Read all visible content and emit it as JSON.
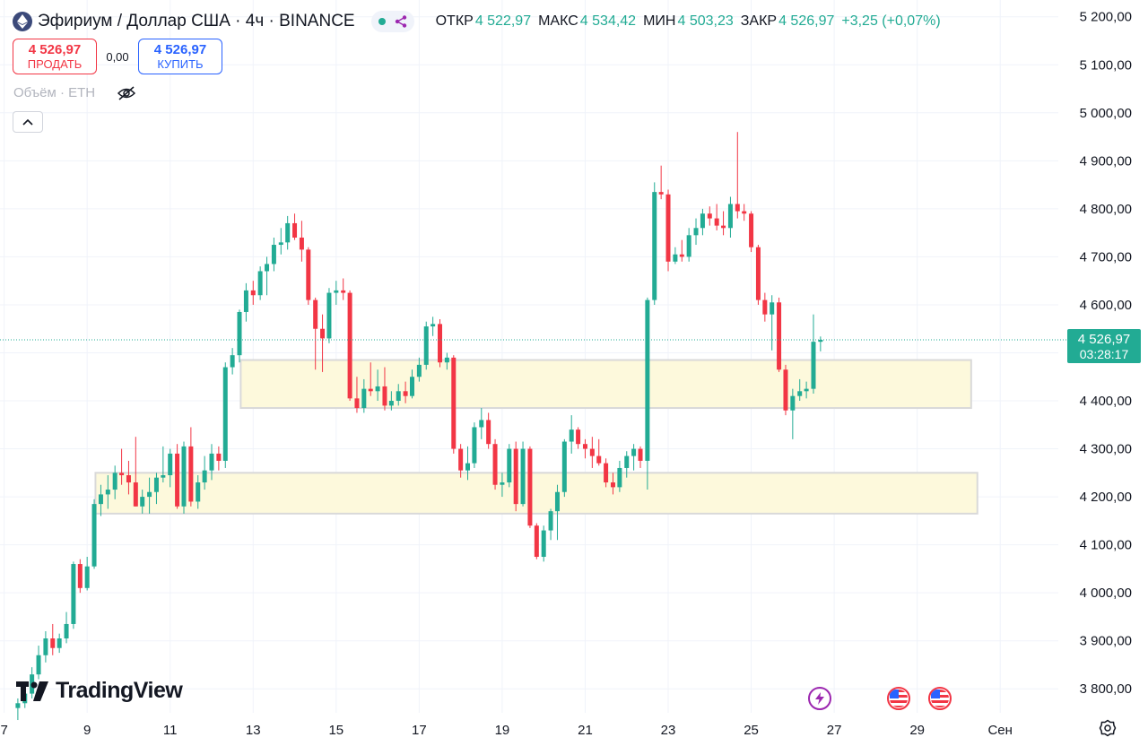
{
  "header": {
    "symbol_title": "Эфириум / Доллар США · 4ч · BINANCE",
    "ohlc": {
      "open_label": "ОТКР",
      "open": "4 522,97",
      "high_label": "МАКС",
      "high": "4 534,42",
      "low_label": "МИН",
      "low": "4 503,23",
      "close_label": "ЗАКР",
      "close": "4 526,97",
      "change": "+3,25 (+0,07%)"
    }
  },
  "trade": {
    "sell_price": "4 526,97",
    "sell_label": "ПРОДАТЬ",
    "spread": "0,00",
    "buy_price": "4 526,97",
    "buy_label": "КУПИТЬ"
  },
  "volume": {
    "label": "Объём · ETH"
  },
  "price_badge": {
    "price": "4 526,97",
    "countdown": "03:28:17"
  },
  "logo": {
    "text": "TradingView"
  },
  "colors": {
    "up": "#22ab94",
    "down": "#f23645",
    "zone_fill": "#fdf9dc",
    "zone_stroke": "#d9d9d9",
    "grid": "#f0f3fa",
    "text": "#131722"
  },
  "icons": {
    "symbol": "ethereum-icon",
    "status": "market-open-dot-icon",
    "alert": "alert-share-icon",
    "eye": "eye-off-icon",
    "collapse": "chevron-up-icon",
    "bolt": "lightning-event-icon",
    "flag": "us-flag-event-icon",
    "settings": "gear-icon"
  },
  "chart_data": {
    "type": "candlestick",
    "interval": "4h",
    "y_ticks": [
      3800,
      3900,
      4000,
      4100,
      4200,
      4300,
      4400,
      4500,
      4600,
      4700,
      4800,
      4900,
      5000,
      5100,
      5200
    ],
    "y_tick_labels": [
      "3 800,00",
      "3 900,00",
      "4 000,00",
      "4 100,00",
      "4 200,00",
      "4 300,00",
      "4 400,00",
      "4 500,00",
      "4 600,00",
      "4 700,00",
      "4 800,00",
      "4 900,00",
      "5 000,00",
      "5 100,00",
      "5 200,00"
    ],
    "x_ticks": [
      7,
      9,
      11,
      13,
      15,
      17,
      19,
      21,
      23,
      25,
      27,
      29,
      31
    ],
    "x_tick_labels": [
      "7",
      "9",
      "11",
      "13",
      "15",
      "17",
      "19",
      "21",
      "23",
      "25",
      "27",
      "29",
      "Сен"
    ],
    "ylim": [
      3750,
      5235
    ],
    "xlim": [
      6.9,
      32.4
    ],
    "last_price": 4526.97,
    "zones": [
      {
        "x_start": 12.7,
        "x_end": 30.3,
        "y_low": 4385,
        "y_high": 4485
      },
      {
        "x_start": 9.2,
        "x_end": 30.45,
        "y_low": 4165,
        "y_high": 4250
      }
    ],
    "events": [
      {
        "x": 26.65,
        "type": "lightning"
      },
      {
        "x": 28.55,
        "type": "flag"
      },
      {
        "x": 29.55,
        "type": "flag"
      }
    ],
    "candles": [
      {
        "t": 7.33,
        "o": 3760,
        "h": 3780,
        "l": 3735,
        "c": 3770
      },
      {
        "t": 7.5,
        "o": 3770,
        "h": 3800,
        "l": 3760,
        "c": 3790
      },
      {
        "t": 7.67,
        "o": 3790,
        "h": 3845,
        "l": 3780,
        "c": 3830
      },
      {
        "t": 7.83,
        "o": 3830,
        "h": 3890,
        "l": 3820,
        "c": 3870
      },
      {
        "t": 8.0,
        "o": 3870,
        "h": 3920,
        "l": 3855,
        "c": 3905
      },
      {
        "t": 8.17,
        "o": 3905,
        "h": 3935,
        "l": 3870,
        "c": 3885
      },
      {
        "t": 8.33,
        "o": 3885,
        "h": 3915,
        "l": 3875,
        "c": 3905
      },
      {
        "t": 8.5,
        "o": 3905,
        "h": 3960,
        "l": 3895,
        "c": 3935
      },
      {
        "t": 8.67,
        "o": 3935,
        "h": 4065,
        "l": 3925,
        "c": 4060
      },
      {
        "t": 8.83,
        "o": 4060,
        "h": 4070,
        "l": 4000,
        "c": 4010
      },
      {
        "t": 9.0,
        "o": 4010,
        "h": 4075,
        "l": 4005,
        "c": 4055
      },
      {
        "t": 9.17,
        "o": 4055,
        "h": 4195,
        "l": 4050,
        "c": 4185
      },
      {
        "t": 9.33,
        "o": 4185,
        "h": 4225,
        "l": 4160,
        "c": 4205
      },
      {
        "t": 9.5,
        "o": 4205,
        "h": 4245,
        "l": 4175,
        "c": 4215
      },
      {
        "t": 9.67,
        "o": 4215,
        "h": 4265,
        "l": 4195,
        "c": 4250
      },
      {
        "t": 9.83,
        "o": 4250,
        "h": 4300,
        "l": 4225,
        "c": 4245
      },
      {
        "t": 10.0,
        "o": 4245,
        "h": 4275,
        "l": 4205,
        "c": 4230
      },
      {
        "t": 10.17,
        "o": 4230,
        "h": 4325,
        "l": 4180,
        "c": 4180
      },
      {
        "t": 10.33,
        "o": 4180,
        "h": 4215,
        "l": 4165,
        "c": 4200
      },
      {
        "t": 10.5,
        "o": 4200,
        "h": 4240,
        "l": 4165,
        "c": 4210
      },
      {
        "t": 10.67,
        "o": 4210,
        "h": 4250,
        "l": 4185,
        "c": 4240
      },
      {
        "t": 10.83,
        "o": 4240,
        "h": 4305,
        "l": 4230,
        "c": 4245
      },
      {
        "t": 11.0,
        "o": 4245,
        "h": 4300,
        "l": 4220,
        "c": 4290
      },
      {
        "t": 11.17,
        "o": 4290,
        "h": 4310,
        "l": 4175,
        "c": 4180
      },
      {
        "t": 11.33,
        "o": 4180,
        "h": 4315,
        "l": 4165,
        "c": 4305
      },
      {
        "t": 11.5,
        "o": 4305,
        "h": 4345,
        "l": 4180,
        "c": 4190
      },
      {
        "t": 11.67,
        "o": 4190,
        "h": 4245,
        "l": 4175,
        "c": 4230
      },
      {
        "t": 11.83,
        "o": 4230,
        "h": 4285,
        "l": 4215,
        "c": 4255
      },
      {
        "t": 12.0,
        "o": 4255,
        "h": 4310,
        "l": 4235,
        "c": 4290
      },
      {
        "t": 12.17,
        "o": 4290,
        "h": 4305,
        "l": 4255,
        "c": 4275
      },
      {
        "t": 12.33,
        "o": 4275,
        "h": 4480,
        "l": 4260,
        "c": 4470
      },
      {
        "t": 12.5,
        "o": 4470,
        "h": 4510,
        "l": 4455,
        "c": 4495
      },
      {
        "t": 12.67,
        "o": 4495,
        "h": 4590,
        "l": 4480,
        "c": 4585
      },
      {
        "t": 12.83,
        "o": 4585,
        "h": 4645,
        "l": 4565,
        "c": 4630
      },
      {
        "t": 13.0,
        "o": 4630,
        "h": 4650,
        "l": 4600,
        "c": 4620
      },
      {
        "t": 13.17,
        "o": 4620,
        "h": 4680,
        "l": 4610,
        "c": 4670
      },
      {
        "t": 13.33,
        "o": 4670,
        "h": 4700,
        "l": 4620,
        "c": 4685
      },
      {
        "t": 13.5,
        "o": 4685,
        "h": 4740,
        "l": 4670,
        "c": 4725
      },
      {
        "t": 13.67,
        "o": 4725,
        "h": 4760,
        "l": 4705,
        "c": 4730
      },
      {
        "t": 13.83,
        "o": 4730,
        "h": 4785,
        "l": 4715,
        "c": 4770
      },
      {
        "t": 14.0,
        "o": 4770,
        "h": 4790,
        "l": 4735,
        "c": 4740
      },
      {
        "t": 14.17,
        "o": 4740,
        "h": 4775,
        "l": 4690,
        "c": 4715
      },
      {
        "t": 14.33,
        "o": 4715,
        "h": 4720,
        "l": 4600,
        "c": 4610
      },
      {
        "t": 14.5,
        "o": 4610,
        "h": 4615,
        "l": 4465,
        "c": 4550
      },
      {
        "t": 14.67,
        "o": 4550,
        "h": 4580,
        "l": 4460,
        "c": 4530
      },
      {
        "t": 14.83,
        "o": 4530,
        "h": 4635,
        "l": 4520,
        "c": 4625
      },
      {
        "t": 15.0,
        "o": 4625,
        "h": 4650,
        "l": 4600,
        "c": 4630
      },
      {
        "t": 15.17,
        "o": 4630,
        "h": 4655,
        "l": 4610,
        "c": 4625
      },
      {
        "t": 15.33,
        "o": 4625,
        "h": 4630,
        "l": 4400,
        "c": 4405
      },
      {
        "t": 15.5,
        "o": 4405,
        "h": 4450,
        "l": 4375,
        "c": 4385
      },
      {
        "t": 15.67,
        "o": 4385,
        "h": 4445,
        "l": 4375,
        "c": 4425
      },
      {
        "t": 15.83,
        "o": 4425,
        "h": 4480,
        "l": 4410,
        "c": 4420
      },
      {
        "t": 16.0,
        "o": 4420,
        "h": 4465,
        "l": 4400,
        "c": 4430
      },
      {
        "t": 16.17,
        "o": 4430,
        "h": 4470,
        "l": 4380,
        "c": 4390
      },
      {
        "t": 16.33,
        "o": 4390,
        "h": 4420,
        "l": 4380,
        "c": 4400
      },
      {
        "t": 16.5,
        "o": 4400,
        "h": 4435,
        "l": 4390,
        "c": 4420
      },
      {
        "t": 16.67,
        "o": 4420,
        "h": 4440,
        "l": 4395,
        "c": 4410
      },
      {
        "t": 16.83,
        "o": 4410,
        "h": 4465,
        "l": 4405,
        "c": 4450
      },
      {
        "t": 17.0,
        "o": 4450,
        "h": 4490,
        "l": 4440,
        "c": 4475
      },
      {
        "t": 17.17,
        "o": 4475,
        "h": 4565,
        "l": 4465,
        "c": 4555
      },
      {
        "t": 17.33,
        "o": 4555,
        "h": 4575,
        "l": 4535,
        "c": 4560
      },
      {
        "t": 17.5,
        "o": 4560,
        "h": 4570,
        "l": 4470,
        "c": 4480
      },
      {
        "t": 17.67,
        "o": 4480,
        "h": 4500,
        "l": 4465,
        "c": 4490
      },
      {
        "t": 17.83,
        "o": 4490,
        "h": 4495,
        "l": 4290,
        "c": 4300
      },
      {
        "t": 18.0,
        "o": 4300,
        "h": 4310,
        "l": 4240,
        "c": 4255
      },
      {
        "t": 18.17,
        "o": 4255,
        "h": 4305,
        "l": 4235,
        "c": 4270
      },
      {
        "t": 18.33,
        "o": 4270,
        "h": 4355,
        "l": 4260,
        "c": 4345
      },
      {
        "t": 18.5,
        "o": 4345,
        "h": 4385,
        "l": 4320,
        "c": 4360
      },
      {
        "t": 18.67,
        "o": 4360,
        "h": 4375,
        "l": 4300,
        "c": 4310
      },
      {
        "t": 18.83,
        "o": 4310,
        "h": 4320,
        "l": 4215,
        "c": 4225
      },
      {
        "t": 19.0,
        "o": 4225,
        "h": 4250,
        "l": 4200,
        "c": 4230
      },
      {
        "t": 19.17,
        "o": 4230,
        "h": 4310,
        "l": 4220,
        "c": 4300
      },
      {
        "t": 19.33,
        "o": 4300,
        "h": 4315,
        "l": 4170,
        "c": 4185
      },
      {
        "t": 19.5,
        "o": 4185,
        "h": 4315,
        "l": 4180,
        "c": 4300
      },
      {
        "t": 19.67,
        "o": 4300,
        "h": 4305,
        "l": 4135,
        "c": 4140
      },
      {
        "t": 19.83,
        "o": 4140,
        "h": 4145,
        "l": 4070,
        "c": 4075
      },
      {
        "t": 20.0,
        "o": 4075,
        "h": 4140,
        "l": 4065,
        "c": 4130
      },
      {
        "t": 20.17,
        "o": 4130,
        "h": 4175,
        "l": 4110,
        "c": 4170
      },
      {
        "t": 20.33,
        "o": 4170,
        "h": 4225,
        "l": 4110,
        "c": 4210
      },
      {
        "t": 20.5,
        "o": 4210,
        "h": 4320,
        "l": 4200,
        "c": 4315
      },
      {
        "t": 20.67,
        "o": 4315,
        "h": 4370,
        "l": 4290,
        "c": 4340
      },
      {
        "t": 20.83,
        "o": 4340,
        "h": 4345,
        "l": 4300,
        "c": 4310
      },
      {
        "t": 21.0,
        "o": 4310,
        "h": 4320,
        "l": 4280,
        "c": 4300
      },
      {
        "t": 21.17,
        "o": 4300,
        "h": 4325,
        "l": 4260,
        "c": 4285
      },
      {
        "t": 21.33,
        "o": 4285,
        "h": 4320,
        "l": 4265,
        "c": 4270
      },
      {
        "t": 21.5,
        "o": 4270,
        "h": 4280,
        "l": 4220,
        "c": 4230
      },
      {
        "t": 21.67,
        "o": 4230,
        "h": 4250,
        "l": 4205,
        "c": 4220
      },
      {
        "t": 21.83,
        "o": 4220,
        "h": 4275,
        "l": 4210,
        "c": 4260
      },
      {
        "t": 22.0,
        "o": 4260,
        "h": 4295,
        "l": 4240,
        "c": 4285
      },
      {
        "t": 22.17,
        "o": 4285,
        "h": 4310,
        "l": 4255,
        "c": 4300
      },
      {
        "t": 22.33,
        "o": 4300,
        "h": 4305,
        "l": 4260,
        "c": 4275
      },
      {
        "t": 22.5,
        "o": 4275,
        "h": 4615,
        "l": 4215,
        "c": 4610
      },
      {
        "t": 22.67,
        "o": 4610,
        "h": 4855,
        "l": 4600,
        "c": 4835
      },
      {
        "t": 22.83,
        "o": 4835,
        "h": 4890,
        "l": 4820,
        "c": 4830
      },
      {
        "t": 23.0,
        "o": 4830,
        "h": 4840,
        "l": 4670,
        "c": 4690
      },
      {
        "t": 23.17,
        "o": 4690,
        "h": 4720,
        "l": 4685,
        "c": 4705
      },
      {
        "t": 23.33,
        "o": 4705,
        "h": 4735,
        "l": 4690,
        "c": 4700
      },
      {
        "t": 23.5,
        "o": 4700,
        "h": 4760,
        "l": 4690,
        "c": 4745
      },
      {
        "t": 23.67,
        "o": 4745,
        "h": 4780,
        "l": 4725,
        "c": 4760
      },
      {
        "t": 23.83,
        "o": 4760,
        "h": 4800,
        "l": 4745,
        "c": 4790
      },
      {
        "t": 24.0,
        "o": 4790,
        "h": 4805,
        "l": 4765,
        "c": 4780
      },
      {
        "t": 24.17,
        "o": 4780,
        "h": 4810,
        "l": 4755,
        "c": 4765
      },
      {
        "t": 24.33,
        "o": 4765,
        "h": 4795,
        "l": 4745,
        "c": 4760
      },
      {
        "t": 24.5,
        "o": 4760,
        "h": 4825,
        "l": 4740,
        "c": 4810
      },
      {
        "t": 24.67,
        "o": 4810,
        "h": 4960,
        "l": 4780,
        "c": 4795
      },
      {
        "t": 24.83,
        "o": 4795,
        "h": 4810,
        "l": 4775,
        "c": 4790
      },
      {
        "t": 25.0,
        "o": 4790,
        "h": 4795,
        "l": 4710,
        "c": 4720
      },
      {
        "t": 25.17,
        "o": 4720,
        "h": 4725,
        "l": 4600,
        "c": 4610
      },
      {
        "t": 25.33,
        "o": 4610,
        "h": 4625,
        "l": 4565,
        "c": 4580
      },
      {
        "t": 25.5,
        "o": 4580,
        "h": 4620,
        "l": 4505,
        "c": 4605
      },
      {
        "t": 25.67,
        "o": 4605,
        "h": 4615,
        "l": 4460,
        "c": 4465
      },
      {
        "t": 25.83,
        "o": 4465,
        "h": 4475,
        "l": 4370,
        "c": 4380
      },
      {
        "t": 26.0,
        "o": 4380,
        "h": 4425,
        "l": 4320,
        "c": 4410
      },
      {
        "t": 26.17,
        "o": 4410,
        "h": 4445,
        "l": 4400,
        "c": 4420
      },
      {
        "t": 26.33,
        "o": 4420,
        "h": 4440,
        "l": 4405,
        "c": 4425
      },
      {
        "t": 26.5,
        "o": 4425,
        "h": 4580,
        "l": 4415,
        "c": 4523
      },
      {
        "t": 26.67,
        "o": 4523,
        "h": 4534,
        "l": 4503,
        "c": 4527
      }
    ]
  }
}
